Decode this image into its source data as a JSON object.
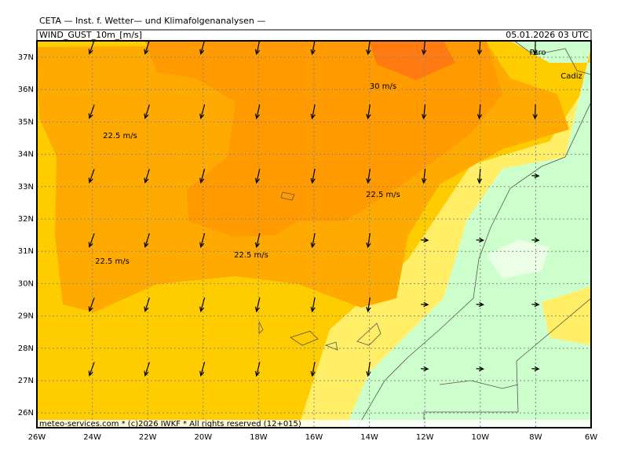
{
  "header": {
    "title": "CETA — Inst. f. Wetter— und Klimafolgenanalysen —",
    "parameter": "WIND_GUST_10m_[m/s]",
    "valid_time": "05.01.2026 03 UTC"
  },
  "map": {
    "lat_labels": [
      "37N",
      "36N",
      "35N",
      "34N",
      "33N",
      "32N",
      "31N",
      "30N",
      "29N",
      "28N",
      "27N",
      "26N"
    ],
    "lon_labels": [
      "26W",
      "24W",
      "22W",
      "20W",
      "18W",
      "16W",
      "14W",
      "12W",
      "10W",
      "8W",
      "6W"
    ],
    "contour_labels": [
      "30 m/s",
      "22.5 m/s",
      "22.5 m/s",
      "22.5 m/s",
      "22.5 m/s"
    ],
    "places": [
      "Faro",
      "Cadiz"
    ]
  },
  "footer": {
    "credit": "meteo-services.com * (c)2026 IWKF * All rights reserved (12+015)"
  }
}
